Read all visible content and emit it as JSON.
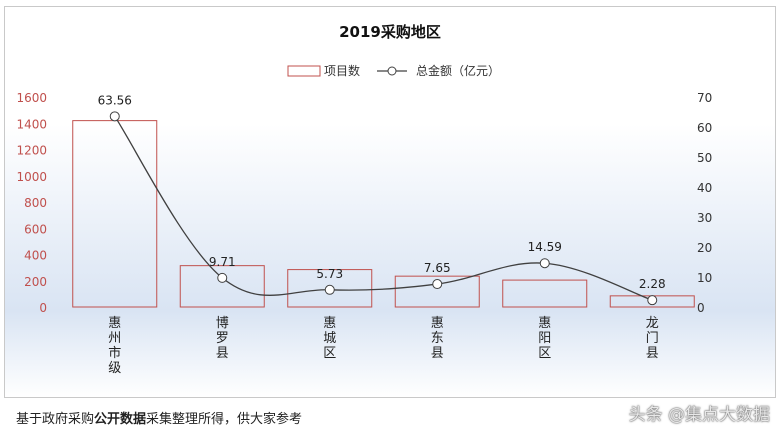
{
  "chart_data": {
    "type": "bar+line",
    "title": "2019采购地区",
    "categories": [
      [
        "惠",
        "州",
        "市",
        "级"
      ],
      [
        "博",
        "罗",
        "县"
      ],
      [
        "惠",
        "城",
        "区"
      ],
      [
        "惠",
        "东",
        "县"
      ],
      [
        "惠",
        "阳",
        "区"
      ],
      [
        "龙",
        "门",
        "县"
      ]
    ],
    "series": [
      {
        "name": "项目数",
        "type": "bar",
        "axis": "left",
        "values": [
          1420,
          315,
          285,
          235,
          205,
          85
        ],
        "color": "#c0504d"
      },
      {
        "name": "总金额（亿元）",
        "type": "line",
        "axis": "right",
        "values": [
          63.56,
          9.71,
          5.73,
          7.65,
          14.59,
          2.28
        ],
        "labels": [
          "63.56",
          "9.71",
          "5.73",
          "7.65",
          "14.59",
          "2.28"
        ],
        "color": "#404040"
      }
    ],
    "left_axis": {
      "ylim": [
        0,
        1600
      ],
      "ticks": [
        "0",
        "200",
        "400",
        "600",
        "800",
        "1000",
        "1200",
        "1400",
        "1600"
      ],
      "tick_color": "#c0504d"
    },
    "right_axis": {
      "ylim": [
        0,
        70
      ],
      "ticks": [
        "0",
        "10",
        "20",
        "30",
        "40",
        "50",
        "60",
        "70"
      ]
    },
    "legend_position": "top-center",
    "grid": false
  },
  "footer": {
    "prefix": "基于政府采购",
    "bold": "公开数据",
    "suffix": "采集整理所得，供大家参考"
  },
  "watermark": "头条 @集点大数据"
}
